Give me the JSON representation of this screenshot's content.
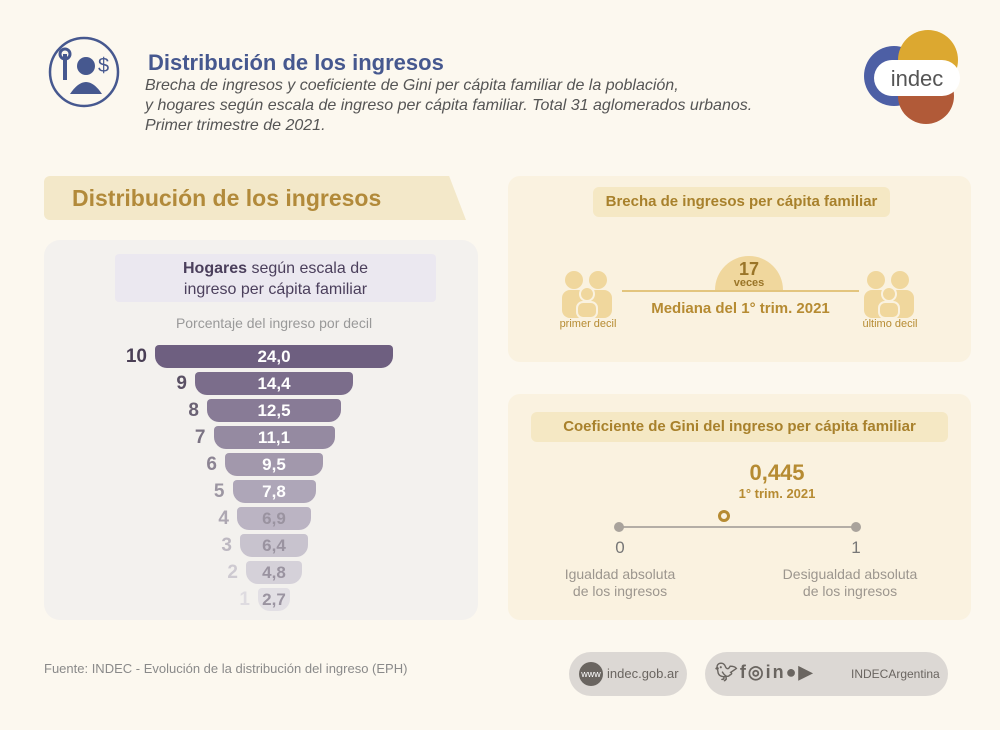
{
  "header": {
    "icon": "person-wrench-dollar-icon",
    "title": "Distribución de los ingresos",
    "subtitle_lines": [
      "Brecha de ingresos y coeficiente de Gini per cápita familiar de la población,",
      "y hogares según escala de ingreso per cápita familiar. Total 31 aglomerados urbanos.",
      "Primer trimestre de 2021."
    ],
    "logo_text": "indec"
  },
  "section_title": "Distribución de los ingresos",
  "chart_data": {
    "type": "bar",
    "style": "funnel",
    "title_bold": "Hogares",
    "title_rest": " según escala de",
    "title_line2": "ingreso per cápita familiar",
    "subtitle": "Porcentaje del ingreso por decil",
    "categories": [
      "10",
      "9",
      "8",
      "7",
      "6",
      "5",
      "4",
      "3",
      "2",
      "1"
    ],
    "labels": [
      "24,0",
      "14,4",
      "12,5",
      "11,1",
      "9,5",
      "7,8",
      "6,9",
      "6,4",
      "4,8",
      "2,7"
    ],
    "values": [
      24.0,
      14.4,
      12.5,
      11.1,
      9.5,
      7.8,
      6.9,
      6.4,
      4.8,
      2.7
    ],
    "colors": {
      "top": "#6e5f80",
      "bottom": "#e2dfe4"
    }
  },
  "brecha": {
    "title": "Brecha de ingresos per cápita familiar",
    "value": "17",
    "unit": "veces",
    "caption": "Mediana del 1° trim. 2021",
    "left_label": "primer decil",
    "right_label": "último decil",
    "icon": "family-icon"
  },
  "gini": {
    "title": "Coeficiente de Gini del ingreso per cápita familiar",
    "value": "0,445",
    "value_num": 0.445,
    "period": "1° trim. 2021",
    "min": "0",
    "max": "1",
    "min_label": [
      "Igualdad absoluta",
      "de los ingresos"
    ],
    "max_label": [
      "Desigualdad absoluta",
      "de los ingresos"
    ]
  },
  "footer": {
    "source": "Fuente: INDEC - Evolución de la distribución del ingreso (EPH)",
    "web_icon": "www",
    "web": "indec.gob.ar",
    "social_handle": "INDECArgentina",
    "social_icons": [
      "twitter-icon",
      "facebook-icon",
      "instagram-icon",
      "linkedin-icon",
      "spotify-icon",
      "youtube-icon"
    ]
  },
  "colors": {
    "blue": "#46588f",
    "gold": "#b68b32",
    "purple": "#6e5f80"
  }
}
